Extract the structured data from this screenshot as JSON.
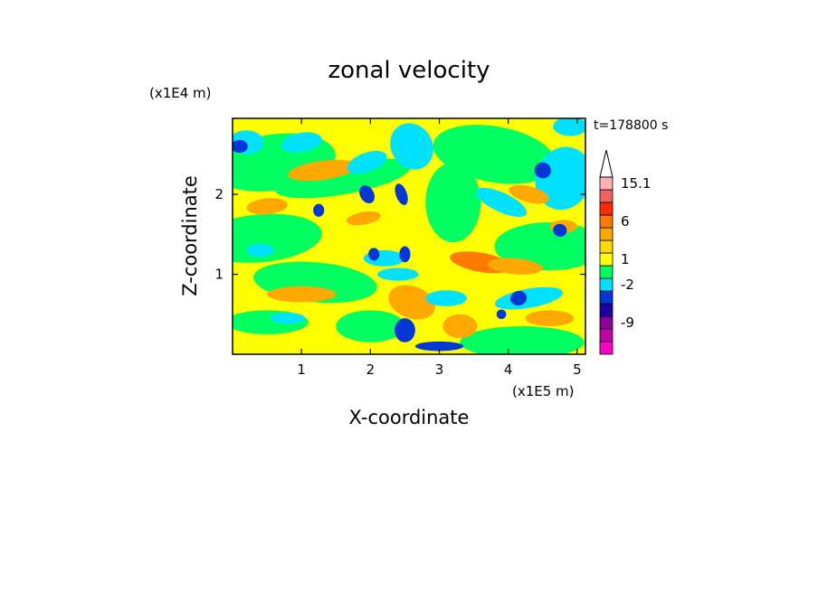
{
  "chart_data": {
    "type": "heatmap",
    "title": "zonal velocity",
    "xlabel": "X-coordinate",
    "ylabel": "Z-coordinate",
    "x_multiplier": "(x1E5 m)",
    "y_multiplier": "(x1E4 m)",
    "time_label": "t=178800 s",
    "xlim": [
      0,
      5.12
    ],
    "ylim": [
      0,
      2.95
    ],
    "x_ticks": [
      1,
      2,
      3,
      4,
      5
    ],
    "y_ticks": [
      1,
      2
    ],
    "grid": false,
    "colorbar": {
      "placement": "right",
      "levels": [
        {
          "color": "#ff00bf"
        },
        {
          "color": "#c000a8"
        },
        {
          "color": "#8a0099"
        },
        {
          "color": "#1b00a8"
        },
        {
          "color": "#0038d8"
        },
        {
          "color": "#00e0ff"
        },
        {
          "color": "#00ff60"
        },
        {
          "color": "#ffff00"
        },
        {
          "color": "#ffd800"
        },
        {
          "color": "#ffa800"
        },
        {
          "color": "#ff7a00"
        },
        {
          "color": "#ff2a00"
        },
        {
          "color": "#f06060"
        },
        {
          "color": "#ffb0b0"
        }
      ],
      "labels": [
        "15.1",
        "6",
        "1",
        "-2",
        "-9"
      ],
      "label_values": [
        15.1,
        6,
        1,
        -2,
        -9
      ],
      "extend": "max"
    }
  }
}
